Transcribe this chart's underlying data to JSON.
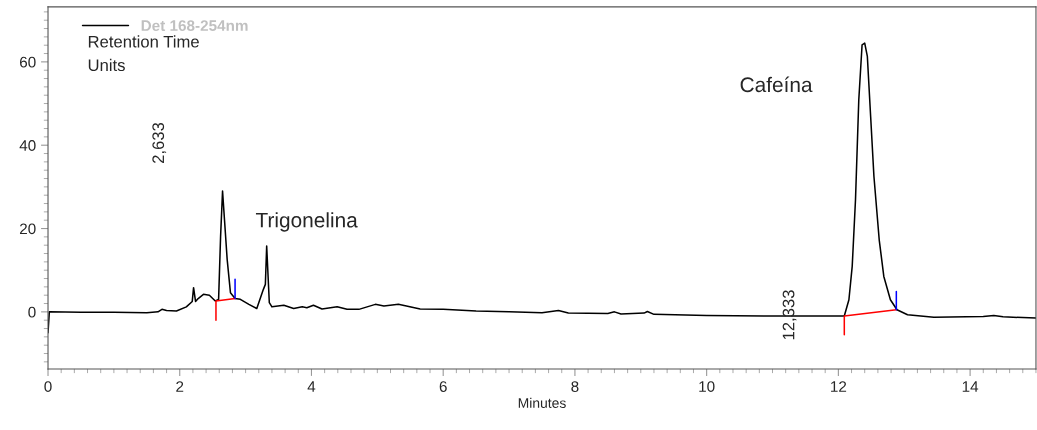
{
  "chart_data": {
    "type": "line",
    "xlabel": "Minutes",
    "series": [
      {
        "name": "Det 168-254nm",
        "color": "#000000",
        "x": [
          0,
          0.02,
          0.5,
          1.0,
          1.5,
          1.67,
          1.73,
          1.8,
          1.95,
          2.1,
          2.19,
          2.21,
          2.24,
          2.28,
          2.36,
          2.45,
          2.54,
          2.59,
          2.62,
          2.65,
          2.68,
          2.72,
          2.77,
          2.84,
          2.92,
          3.05,
          3.17,
          3.27,
          3.3,
          3.32,
          3.36,
          3.4,
          3.58,
          3.73,
          3.86,
          3.93,
          4.03,
          4.16,
          4.39,
          4.54,
          4.72,
          4.97,
          5.1,
          5.32,
          5.65,
          6.0,
          6.5,
          7.0,
          7.5,
          7.75,
          7.9,
          8.5,
          8.6,
          8.7,
          9.05,
          9.1,
          9.2,
          10.0,
          11.0,
          12.0,
          12.09,
          12.16,
          12.21,
          12.26,
          12.31,
          12.36,
          12.4,
          12.44,
          12.49,
          12.54,
          12.62,
          12.69,
          12.79,
          12.89,
          13.05,
          13.45,
          14.2,
          14.36,
          14.5,
          15.0
        ],
        "values": [
          -5,
          0,
          -0.1,
          -0.1,
          -0.2,
          0,
          0.6,
          0.3,
          0.2,
          1.2,
          2.5,
          5.8,
          2.5,
          3.2,
          4.2,
          4.0,
          2.6,
          3.0,
          18,
          29,
          22,
          12.6,
          4.6,
          3.2,
          3.0,
          1.8,
          0.8,
          5.4,
          6.6,
          15.8,
          2.2,
          1.2,
          1.6,
          0.8,
          1.2,
          1.0,
          1.6,
          0.7,
          1.2,
          0.6,
          0.6,
          1.8,
          1.4,
          1.8,
          0.7,
          0.6,
          0.2,
          0.0,
          -0.2,
          0.3,
          -0.3,
          -0.4,
          0.0,
          -0.5,
          -0.3,
          0.1,
          -0.6,
          -0.9,
          -1.0,
          -1.0,
          -1.0,
          2.9,
          10.9,
          26.9,
          50.9,
          64.1,
          64.5,
          61.3,
          46.9,
          32.5,
          17.3,
          8.5,
          2.9,
          0.5,
          -0.7,
          -1.3,
          -1.1,
          -0.9,
          -1.2,
          -1.5
        ]
      },
      {
        "color": "#ff0000",
        "x": [
          2.55,
          2.55,
          2.84,
          null,
          12.09,
          12.09,
          12.88
        ],
        "values": [
          -2,
          2.6,
          3.2,
          null,
          -5.5,
          -1.0,
          0.5
        ]
      },
      {
        "color": "#0000ff",
        "x": [
          2.84,
          2.84,
          null,
          12.88,
          12.88
        ],
        "values": [
          3.2,
          7.8,
          null,
          0.5,
          4.9
        ]
      }
    ],
    "annotations": [
      "Retention Time",
      "Units",
      "2,633",
      "Trigonelina",
      "Cafeína",
      "12,333"
    ],
    "xlim": [
      0,
      15
    ],
    "xticks": [
      0,
      2,
      4,
      6,
      8,
      10,
      12,
      14
    ],
    "ylim": [
      -13.7,
      73.2
    ],
    "yticks": [
      0,
      20,
      40,
      60
    ],
    "legend": "top left",
    "grid": false,
    "marker": "none",
    "line_style": "solid"
  }
}
